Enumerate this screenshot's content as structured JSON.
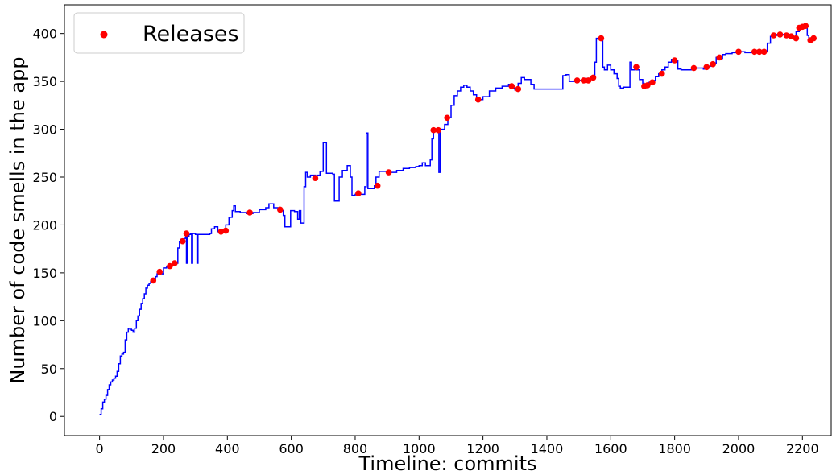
{
  "chart_data": {
    "type": "line",
    "title": "",
    "xlabel": "Timeline: commits",
    "ylabel": "Number of code smells in the app",
    "xlim": [
      -110,
      2290
    ],
    "ylim": [
      -20,
      430
    ],
    "xticks": [
      0,
      200,
      400,
      600,
      800,
      1000,
      1200,
      1400,
      1600,
      1800,
      2000,
      2200
    ],
    "yticks": [
      0,
      50,
      100,
      150,
      200,
      250,
      300,
      350,
      400
    ],
    "grid": false,
    "legend": {
      "location": "top-left",
      "entries": [
        "Releases"
      ]
    },
    "series": [
      {
        "kind": "line",
        "color": "#0000ff",
        "points": [
          [
            0,
            2
          ],
          [
            5,
            8
          ],
          [
            10,
            15
          ],
          [
            15,
            18
          ],
          [
            20,
            22
          ],
          [
            25,
            28
          ],
          [
            30,
            33
          ],
          [
            35,
            36
          ],
          [
            40,
            38
          ],
          [
            45,
            40
          ],
          [
            50,
            42
          ],
          [
            55,
            47
          ],
          [
            60,
            55
          ],
          [
            65,
            63
          ],
          [
            70,
            65
          ],
          [
            75,
            67
          ],
          [
            80,
            80
          ],
          [
            85,
            88
          ],
          [
            90,
            92
          ],
          [
            95,
            91
          ],
          [
            100,
            90
          ],
          [
            105,
            88
          ],
          [
            110,
            92
          ],
          [
            115,
            100
          ],
          [
            120,
            105
          ],
          [
            125,
            112
          ],
          [
            130,
            118
          ],
          [
            135,
            123
          ],
          [
            140,
            128
          ],
          [
            145,
            134
          ],
          [
            150,
            137
          ],
          [
            155,
            139
          ],
          [
            160,
            141
          ],
          [
            165,
            142
          ],
          [
            170,
            143
          ],
          [
            175,
            146
          ],
          [
            180,
            149
          ],
          [
            185,
            151
          ],
          [
            190,
            150
          ],
          [
            195,
            149
          ],
          [
            200,
            155
          ],
          [
            210,
            157
          ],
          [
            220,
            158
          ],
          [
            230,
            159
          ],
          [
            240,
            160
          ],
          [
            245,
            176
          ],
          [
            250,
            183
          ],
          [
            255,
            185
          ],
          [
            260,
            184
          ],
          [
            265,
            186
          ],
          [
            270,
            188
          ],
          [
            272,
            160
          ],
          [
            274,
            188
          ],
          [
            280,
            190
          ],
          [
            285,
            191
          ],
          [
            288,
            160
          ],
          [
            291,
            191
          ],
          [
            300,
            190
          ],
          [
            305,
            160
          ],
          [
            308,
            190
          ],
          [
            320,
            190
          ],
          [
            335,
            190
          ],
          [
            345,
            191
          ],
          [
            350,
            196
          ],
          [
            360,
            198
          ],
          [
            370,
            193
          ],
          [
            385,
            193
          ],
          [
            395,
            200
          ],
          [
            405,
            208
          ],
          [
            415,
            215
          ],
          [
            420,
            220
          ],
          [
            425,
            214
          ],
          [
            440,
            213
          ],
          [
            460,
            212
          ],
          [
            480,
            213
          ],
          [
            500,
            216
          ],
          [
            520,
            218
          ],
          [
            530,
            222
          ],
          [
            545,
            218
          ],
          [
            560,
            216
          ],
          [
            570,
            215
          ],
          [
            575,
            210
          ],
          [
            580,
            198
          ],
          [
            590,
            198
          ],
          [
            598,
            215
          ],
          [
            610,
            214
          ],
          [
            620,
            206
          ],
          [
            625,
            215
          ],
          [
            630,
            202
          ],
          [
            640,
            240
          ],
          [
            645,
            255
          ],
          [
            650,
            250
          ],
          [
            660,
            252
          ],
          [
            675,
            248
          ],
          [
            680,
            252
          ],
          [
            690,
            256
          ],
          [
            700,
            286
          ],
          [
            705,
            286
          ],
          [
            710,
            254
          ],
          [
            730,
            253
          ],
          [
            735,
            225
          ],
          [
            745,
            225
          ],
          [
            750,
            250
          ],
          [
            760,
            257
          ],
          [
            775,
            262
          ],
          [
            785,
            250
          ],
          [
            790,
            231
          ],
          [
            800,
            232
          ],
          [
            810,
            232
          ],
          [
            830,
            240
          ],
          [
            835,
            296
          ],
          [
            840,
            238
          ],
          [
            860,
            241
          ],
          [
            865,
            250
          ],
          [
            875,
            256
          ],
          [
            900,
            255
          ],
          [
            930,
            257
          ],
          [
            950,
            259
          ],
          [
            970,
            260
          ],
          [
            990,
            261
          ],
          [
            1000,
            262
          ],
          [
            1010,
            265
          ],
          [
            1020,
            262
          ],
          [
            1030,
            262
          ],
          [
            1035,
            268
          ],
          [
            1040,
            290
          ],
          [
            1045,
            299
          ],
          [
            1055,
            300
          ],
          [
            1060,
            299
          ],
          [
            1062,
            255
          ],
          [
            1066,
            300
          ],
          [
            1080,
            305
          ],
          [
            1090,
            312
          ],
          [
            1100,
            325
          ],
          [
            1110,
            335
          ],
          [
            1120,
            340
          ],
          [
            1130,
            344
          ],
          [
            1140,
            346
          ],
          [
            1150,
            344
          ],
          [
            1160,
            340
          ],
          [
            1170,
            336
          ],
          [
            1180,
            333
          ],
          [
            1190,
            331
          ],
          [
            1200,
            334
          ],
          [
            1220,
            340
          ],
          [
            1240,
            343
          ],
          [
            1260,
            345
          ],
          [
            1280,
            347
          ],
          [
            1290,
            343
          ],
          [
            1300,
            341
          ],
          [
            1310,
            348
          ],
          [
            1320,
            354
          ],
          [
            1330,
            352
          ],
          [
            1340,
            352
          ],
          [
            1350,
            347
          ],
          [
            1360,
            342
          ],
          [
            1380,
            342
          ],
          [
            1400,
            342
          ],
          [
            1420,
            342
          ],
          [
            1440,
            342
          ],
          [
            1450,
            356
          ],
          [
            1460,
            357
          ],
          [
            1470,
            350
          ],
          [
            1480,
            350
          ],
          [
            1490,
            351
          ],
          [
            1500,
            351
          ],
          [
            1510,
            351
          ],
          [
            1520,
            353
          ],
          [
            1530,
            352
          ],
          [
            1540,
            354
          ],
          [
            1550,
            370
          ],
          [
            1555,
            395
          ],
          [
            1560,
            394
          ],
          [
            1570,
            395
          ],
          [
            1575,
            365
          ],
          [
            1580,
            362
          ],
          [
            1590,
            367
          ],
          [
            1600,
            362
          ],
          [
            1610,
            358
          ],
          [
            1620,
            353
          ],
          [
            1625,
            345
          ],
          [
            1630,
            343
          ],
          [
            1640,
            344
          ],
          [
            1650,
            344
          ],
          [
            1660,
            370
          ],
          [
            1665,
            362
          ],
          [
            1675,
            366
          ],
          [
            1680,
            362
          ],
          [
            1690,
            352
          ],
          [
            1700,
            348
          ],
          [
            1705,
            346
          ],
          [
            1710,
            347
          ],
          [
            1720,
            349
          ],
          [
            1730,
            351
          ],
          [
            1740,
            355
          ],
          [
            1750,
            358
          ],
          [
            1760,
            362
          ],
          [
            1770,
            365
          ],
          [
            1780,
            370
          ],
          [
            1790,
            373
          ],
          [
            1800,
            372
          ],
          [
            1810,
            363
          ],
          [
            1820,
            362
          ],
          [
            1840,
            362
          ],
          [
            1860,
            364
          ],
          [
            1880,
            364
          ],
          [
            1890,
            363
          ],
          [
            1900,
            364
          ],
          [
            1910,
            366
          ],
          [
            1920,
            369
          ],
          [
            1930,
            375
          ],
          [
            1940,
            374
          ],
          [
            1950,
            378
          ],
          [
            1960,
            379
          ],
          [
            1980,
            380
          ],
          [
            2000,
            381
          ],
          [
            2020,
            380
          ],
          [
            2040,
            381
          ],
          [
            2060,
            381
          ],
          [
            2080,
            381
          ],
          [
            2090,
            390
          ],
          [
            2100,
            397
          ],
          [
            2110,
            398
          ],
          [
            2120,
            399
          ],
          [
            2140,
            399
          ],
          [
            2160,
            398
          ],
          [
            2170,
            396
          ],
          [
            2180,
            402
          ],
          [
            2190,
            406
          ],
          [
            2200,
            407
          ],
          [
            2210,
            408
          ],
          [
            2215,
            398
          ],
          [
            2220,
            393
          ],
          [
            2225,
            392
          ],
          [
            2230,
            394
          ]
        ]
      },
      {
        "name": "Releases",
        "kind": "scatter",
        "color": "#ff0000",
        "points": [
          [
            168,
            142
          ],
          [
            188,
            151
          ],
          [
            220,
            157
          ],
          [
            235,
            160
          ],
          [
            260,
            183
          ],
          [
            272,
            191
          ],
          [
            380,
            193
          ],
          [
            395,
            194
          ],
          [
            470,
            213
          ],
          [
            565,
            216
          ],
          [
            675,
            249
          ],
          [
            810,
            233
          ],
          [
            870,
            241
          ],
          [
            905,
            255
          ],
          [
            1045,
            299
          ],
          [
            1060,
            299
          ],
          [
            1088,
            312
          ],
          [
            1185,
            331
          ],
          [
            1290,
            345
          ],
          [
            1310,
            342
          ],
          [
            1495,
            351
          ],
          [
            1515,
            351
          ],
          [
            1530,
            351
          ],
          [
            1545,
            354
          ],
          [
            1570,
            395
          ],
          [
            1680,
            365
          ],
          [
            1705,
            345
          ],
          [
            1715,
            346
          ],
          [
            1730,
            349
          ],
          [
            1760,
            358
          ],
          [
            1800,
            372
          ],
          [
            1860,
            364
          ],
          [
            1900,
            365
          ],
          [
            1920,
            368
          ],
          [
            1940,
            375
          ],
          [
            2000,
            381
          ],
          [
            2050,
            381
          ],
          [
            2065,
            381
          ],
          [
            2080,
            381
          ],
          [
            2110,
            398
          ],
          [
            2130,
            399
          ],
          [
            2150,
            398
          ],
          [
            2165,
            397
          ],
          [
            2180,
            395
          ],
          [
            2190,
            406
          ],
          [
            2200,
            407
          ],
          [
            2210,
            408
          ],
          [
            2225,
            393
          ],
          [
            2235,
            395
          ]
        ]
      }
    ]
  }
}
